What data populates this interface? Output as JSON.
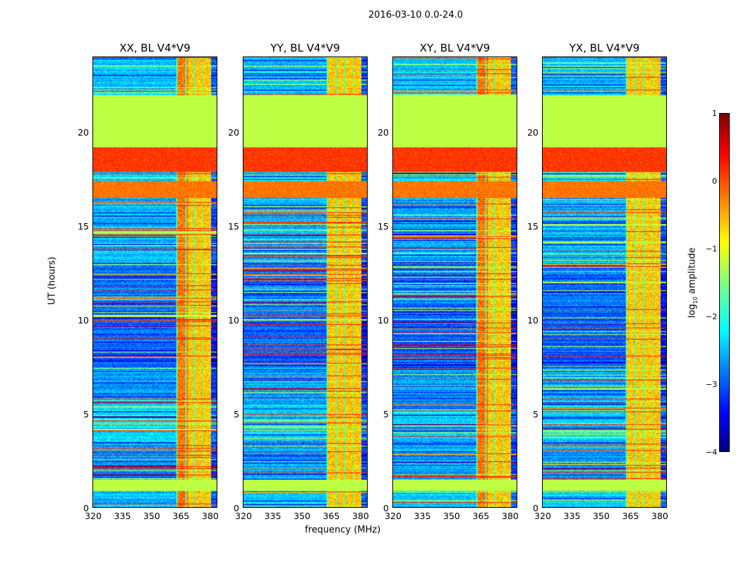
{
  "chart_data": {
    "type": "heatmap",
    "title": "2016-03-10 0.0-24.0",
    "xlabel": "frequency (MHz)",
    "ylabel": "UT (hours)",
    "xlim": [
      320,
      384
    ],
    "ylim": [
      0,
      24
    ],
    "xticks": [
      "320",
      "335",
      "350",
      "365",
      "380"
    ],
    "yticks": [
      "0",
      "5",
      "10",
      "15",
      "20"
    ],
    "colorbar": {
      "label": "log10 amplitude",
      "label_main": "log",
      "label_sub": "10",
      "label_rest": " amplitude",
      "range": [
        -4,
        1
      ],
      "ticks": [
        "1",
        "0",
        "−1",
        "−2",
        "−3",
        "−4"
      ]
    },
    "rfi_band_mhz": [
      363,
      381
    ],
    "time_bands": [
      {
        "from": 0,
        "to": 0.9,
        "level": -2.4
      },
      {
        "from": 0.9,
        "to": 1.5,
        "level": -1.2
      },
      {
        "from": 1.5,
        "to": 3.5,
        "level": -2.6
      },
      {
        "from": 3.5,
        "to": 5.5,
        "level": -2.3
      },
      {
        "from": 5.5,
        "to": 7.5,
        "level": -2.6
      },
      {
        "from": 7.5,
        "to": 11,
        "level": -2.9
      },
      {
        "from": 11,
        "to": 13,
        "level": -2.8
      },
      {
        "from": 13,
        "to": 16.5,
        "level": -2.5
      },
      {
        "from": 16.5,
        "to": 17.4,
        "level": -0.2
      },
      {
        "from": 17.4,
        "to": 17.9,
        "level": -2.2
      },
      {
        "from": 17.9,
        "to": 19.2,
        "level": 0.1
      },
      {
        "from": 19.2,
        "to": 22.0,
        "level": -1.2
      },
      {
        "from": 22.0,
        "to": 24,
        "level": -2.4
      }
    ],
    "series": [
      {
        "name": "XX, BL V4*V9"
      },
      {
        "name": "YY, BL V4*V9"
      },
      {
        "name": "XY, BL V4*V9"
      },
      {
        "name": "YX, BL V4*V9"
      }
    ]
  }
}
